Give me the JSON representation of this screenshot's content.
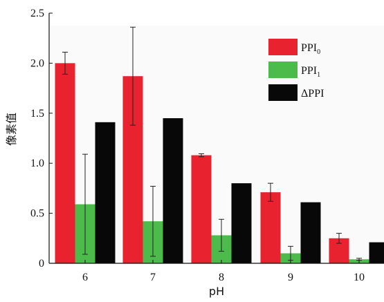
{
  "chart_data": {
    "type": "bar",
    "title": "",
    "xlabel": "pH",
    "ylabel": "像素值",
    "categories": [
      "6",
      "7",
      "8",
      "9",
      "10"
    ],
    "ylim": [
      0,
      2.5
    ],
    "yticks": [
      "0",
      "0.5",
      "1.0",
      "1.5",
      "2.0",
      "2.5"
    ],
    "grid": false,
    "legend_position": "top-right",
    "series": [
      {
        "name": "PPI",
        "name_subscript": "0",
        "color": "#e8222e",
        "values": [
          2.0,
          1.87,
          1.08,
          0.71,
          0.25
        ],
        "error": [
          0.11,
          0.49,
          0.015,
          0.09,
          0.05
        ]
      },
      {
        "name": "PPI",
        "name_subscript": "1",
        "color": "#4cbb4c",
        "values": [
          0.59,
          0.42,
          0.28,
          0.1,
          0.04
        ],
        "error": [
          0.5,
          0.35,
          0.16,
          0.07,
          0.01
        ]
      },
      {
        "name": "ΔPPI",
        "name_subscript": "",
        "color": "#080808",
        "values": [
          1.41,
          1.45,
          0.8,
          0.61,
          0.21
        ],
        "error": null
      }
    ]
  }
}
